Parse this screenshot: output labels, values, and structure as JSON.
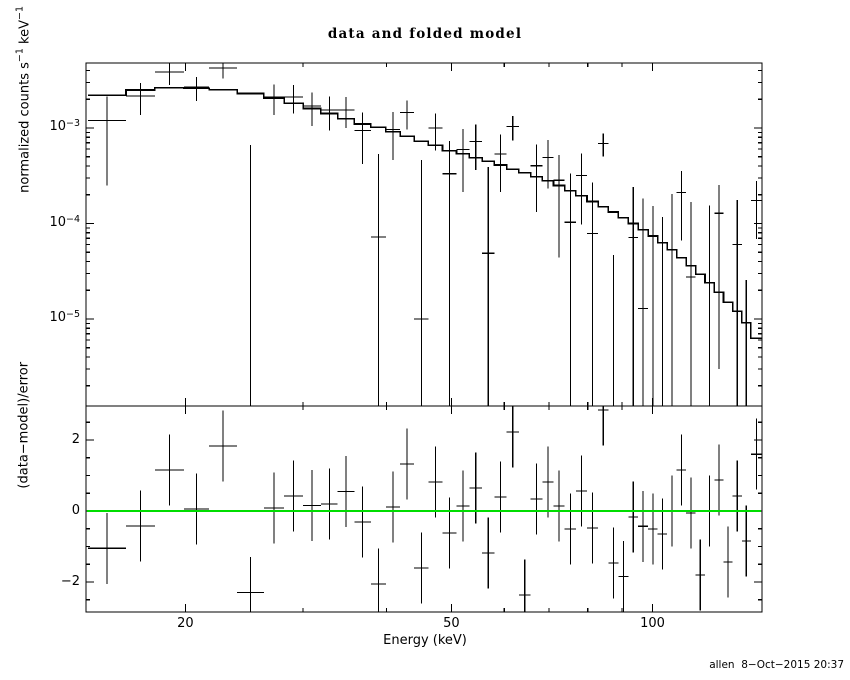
{
  "title": "data and folded model",
  "signature": "allen  8−Oct−2015 20:37",
  "colors": {
    "foreground": "#000000",
    "background": "#ffffff",
    "zero_line": "#00dd00"
  },
  "axes": {
    "x": {
      "label": "Energy (keV)",
      "scale": "log",
      "min_kev": 14.2,
      "max_kev": 146,
      "major_ticks": [
        20,
        50,
        100
      ],
      "minor_ticks": [
        30,
        40,
        60,
        70,
        80,
        90
      ]
    },
    "y_top": {
      "label_parts": [
        "normalized counts s",
        "−1",
        " keV",
        "−1"
      ],
      "scale": "log",
      "min": 1.2e-06,
      "max": 0.0048,
      "major_ticks": [
        0.001,
        0.0001,
        1e-05
      ],
      "tick_labels": [
        {
          "base": "10",
          "exp": "−3"
        },
        {
          "base": "10",
          "exp": "−4"
        },
        {
          "base": "10",
          "exp": "−5"
        }
      ]
    },
    "y_bottom": {
      "label": "(data−model)/error",
      "scale": "linear",
      "min": -2.8,
      "max": 3.0,
      "major_ticks": [
        2,
        0,
        -2
      ],
      "major_tick_labels": [
        "2",
        "0",
        "−2"
      ],
      "minor_step": 0.5
    }
  },
  "chart_data": {
    "type": "line",
    "title": "data and folded model",
    "xlabel": "Energy (keV)",
    "ylabel_top": "normalized counts s−1 keV−1",
    "ylabel_bottom": "(data−model)/error",
    "x_scale": "log",
    "x_range_kev": [
      14.2,
      146
    ],
    "y_top_scale": "log",
    "y_top_range": [
      1.2e-06,
      0.0048
    ],
    "y_bottom_range": [
      -2.8,
      3.0
    ],
    "zero_line": 0,
    "energy_bin_edges_kev": [
      14.3,
      16.3,
      18.0,
      19.9,
      21.7,
      23.9,
      26.2,
      28.1,
      30.0,
      31.9,
      33.8,
      35.8,
      37.9,
      39.9,
      41.9,
      44.0,
      46.2,
      48.5,
      50.9,
      53.2,
      55.6,
      58.0,
      60.5,
      63.1,
      65.7,
      68.4,
      71.1,
      73.9,
      76.8,
      79.8,
      82.9,
      85.9,
      88.9,
      92.0,
      95.2,
      98.5,
      101.8,
      105.2,
      108.7,
      112.3,
      116.0,
      119.8,
      123.7,
      127.7,
      131.8,
      136.0,
      140.3,
      146.0
    ],
    "series": [
      {
        "name": "data_counts_s_kev",
        "values": [
          0.0012,
          0.00216,
          0.00386,
          0.00267,
          0.00426,
          -0.000598,
          0.00211,
          0.00211,
          0.0017,
          0.00154,
          0.00155,
          0.000939,
          7.24e-05,
          0.000965,
          0.00145,
          1e-05,
          0.001,
          0.000332,
          0.000593,
          0.000724,
          4.88e-05,
          0.000535,
          0.00104,
          -0.000347,
          0.000402,
          0.000493,
          0.000284,
          0.000103,
          0.000318,
          7.88e-05,
          0.00069,
          -0.000133,
          -0.000218,
          7.11e-05,
          1.29e-05,
          -7.6e-06,
          -3.78e-05,
          5.3e-05,
          0.000211,
          2.76e-05,
          -0.000214,
          2.4e-05,
          0.000128,
          -0.000158,
          6.03e-05,
          -8.44e-05,
          0.000174
        ]
      },
      {
        "name": "data_error_1sigma",
        "values": [
          0.00095,
          0.0008,
          0.00105,
          0.00075,
          0.00095,
          0.00126,
          0.00075,
          0.0007,
          0.00065,
          0.0006,
          0.00055,
          0.00052,
          0.00046,
          0.0005,
          0.00048,
          0.00045,
          0.00042,
          0.0004,
          0.00038,
          0.00036,
          0.00034,
          0.00032,
          0.0003,
          0.00029,
          0.00027,
          0.00026,
          0.00024,
          0.00023,
          0.00022,
          0.00019,
          0.00019,
          0.00018,
          0.00018,
          0.00017,
          0.00017,
          0.00016,
          0.000155,
          0.00015,
          0.000145,
          0.00014,
          0.000135,
          0.00013,
          0.000125,
          0.00012,
          0.000115,
          0.00011,
          0.000105
        ]
      },
      {
        "name": "folded_model",
        "values": [
          0.0022,
          0.0025,
          0.00265,
          0.00262,
          0.00252,
          0.0023,
          0.00205,
          0.00182,
          0.0016,
          0.00142,
          0.00125,
          0.0011,
          0.00102,
          0.00091,
          0.00082,
          0.00073,
          0.00066,
          0.00058,
          0.00054,
          0.00049,
          0.00045,
          0.00041,
          0.00037,
          0.00034,
          0.00031,
          0.00028,
          0.00025,
          0.00022,
          0.000195,
          0.00017,
          0.00015,
          0.000132,
          0.000115,
          0.0001,
          8.6e-05,
          7.4e-05,
          6.3e-05,
          5.3e-05,
          4.4e-05,
          3.6e-05,
          2.95e-05,
          2.4e-05,
          1.9e-05,
          1.5e-05,
          1.2e-05,
          9.1e-06,
          6.3e-06
        ]
      },
      {
        "name": "residuals_sigma",
        "values": [
          -1.05,
          -0.42,
          1.15,
          0.06,
          1.83,
          -2.3,
          0.08,
          0.42,
          0.16,
          0.2,
          0.55,
          -0.31,
          -2.06,
          0.11,
          1.32,
          -1.6,
          0.82,
          -0.62,
          0.14,
          0.65,
          -1.18,
          0.39,
          2.23,
          -2.37,
          0.34,
          0.82,
          0.14,
          -0.51,
          0.56,
          -0.48,
          2.84,
          -1.47,
          -1.85,
          -0.17,
          -0.43,
          -0.51,
          -0.65,
          0.0,
          1.15,
          -0.06,
          -1.8,
          0.0,
          0.87,
          -1.44,
          0.42,
          -0.85,
          1.6
        ]
      }
    ]
  }
}
